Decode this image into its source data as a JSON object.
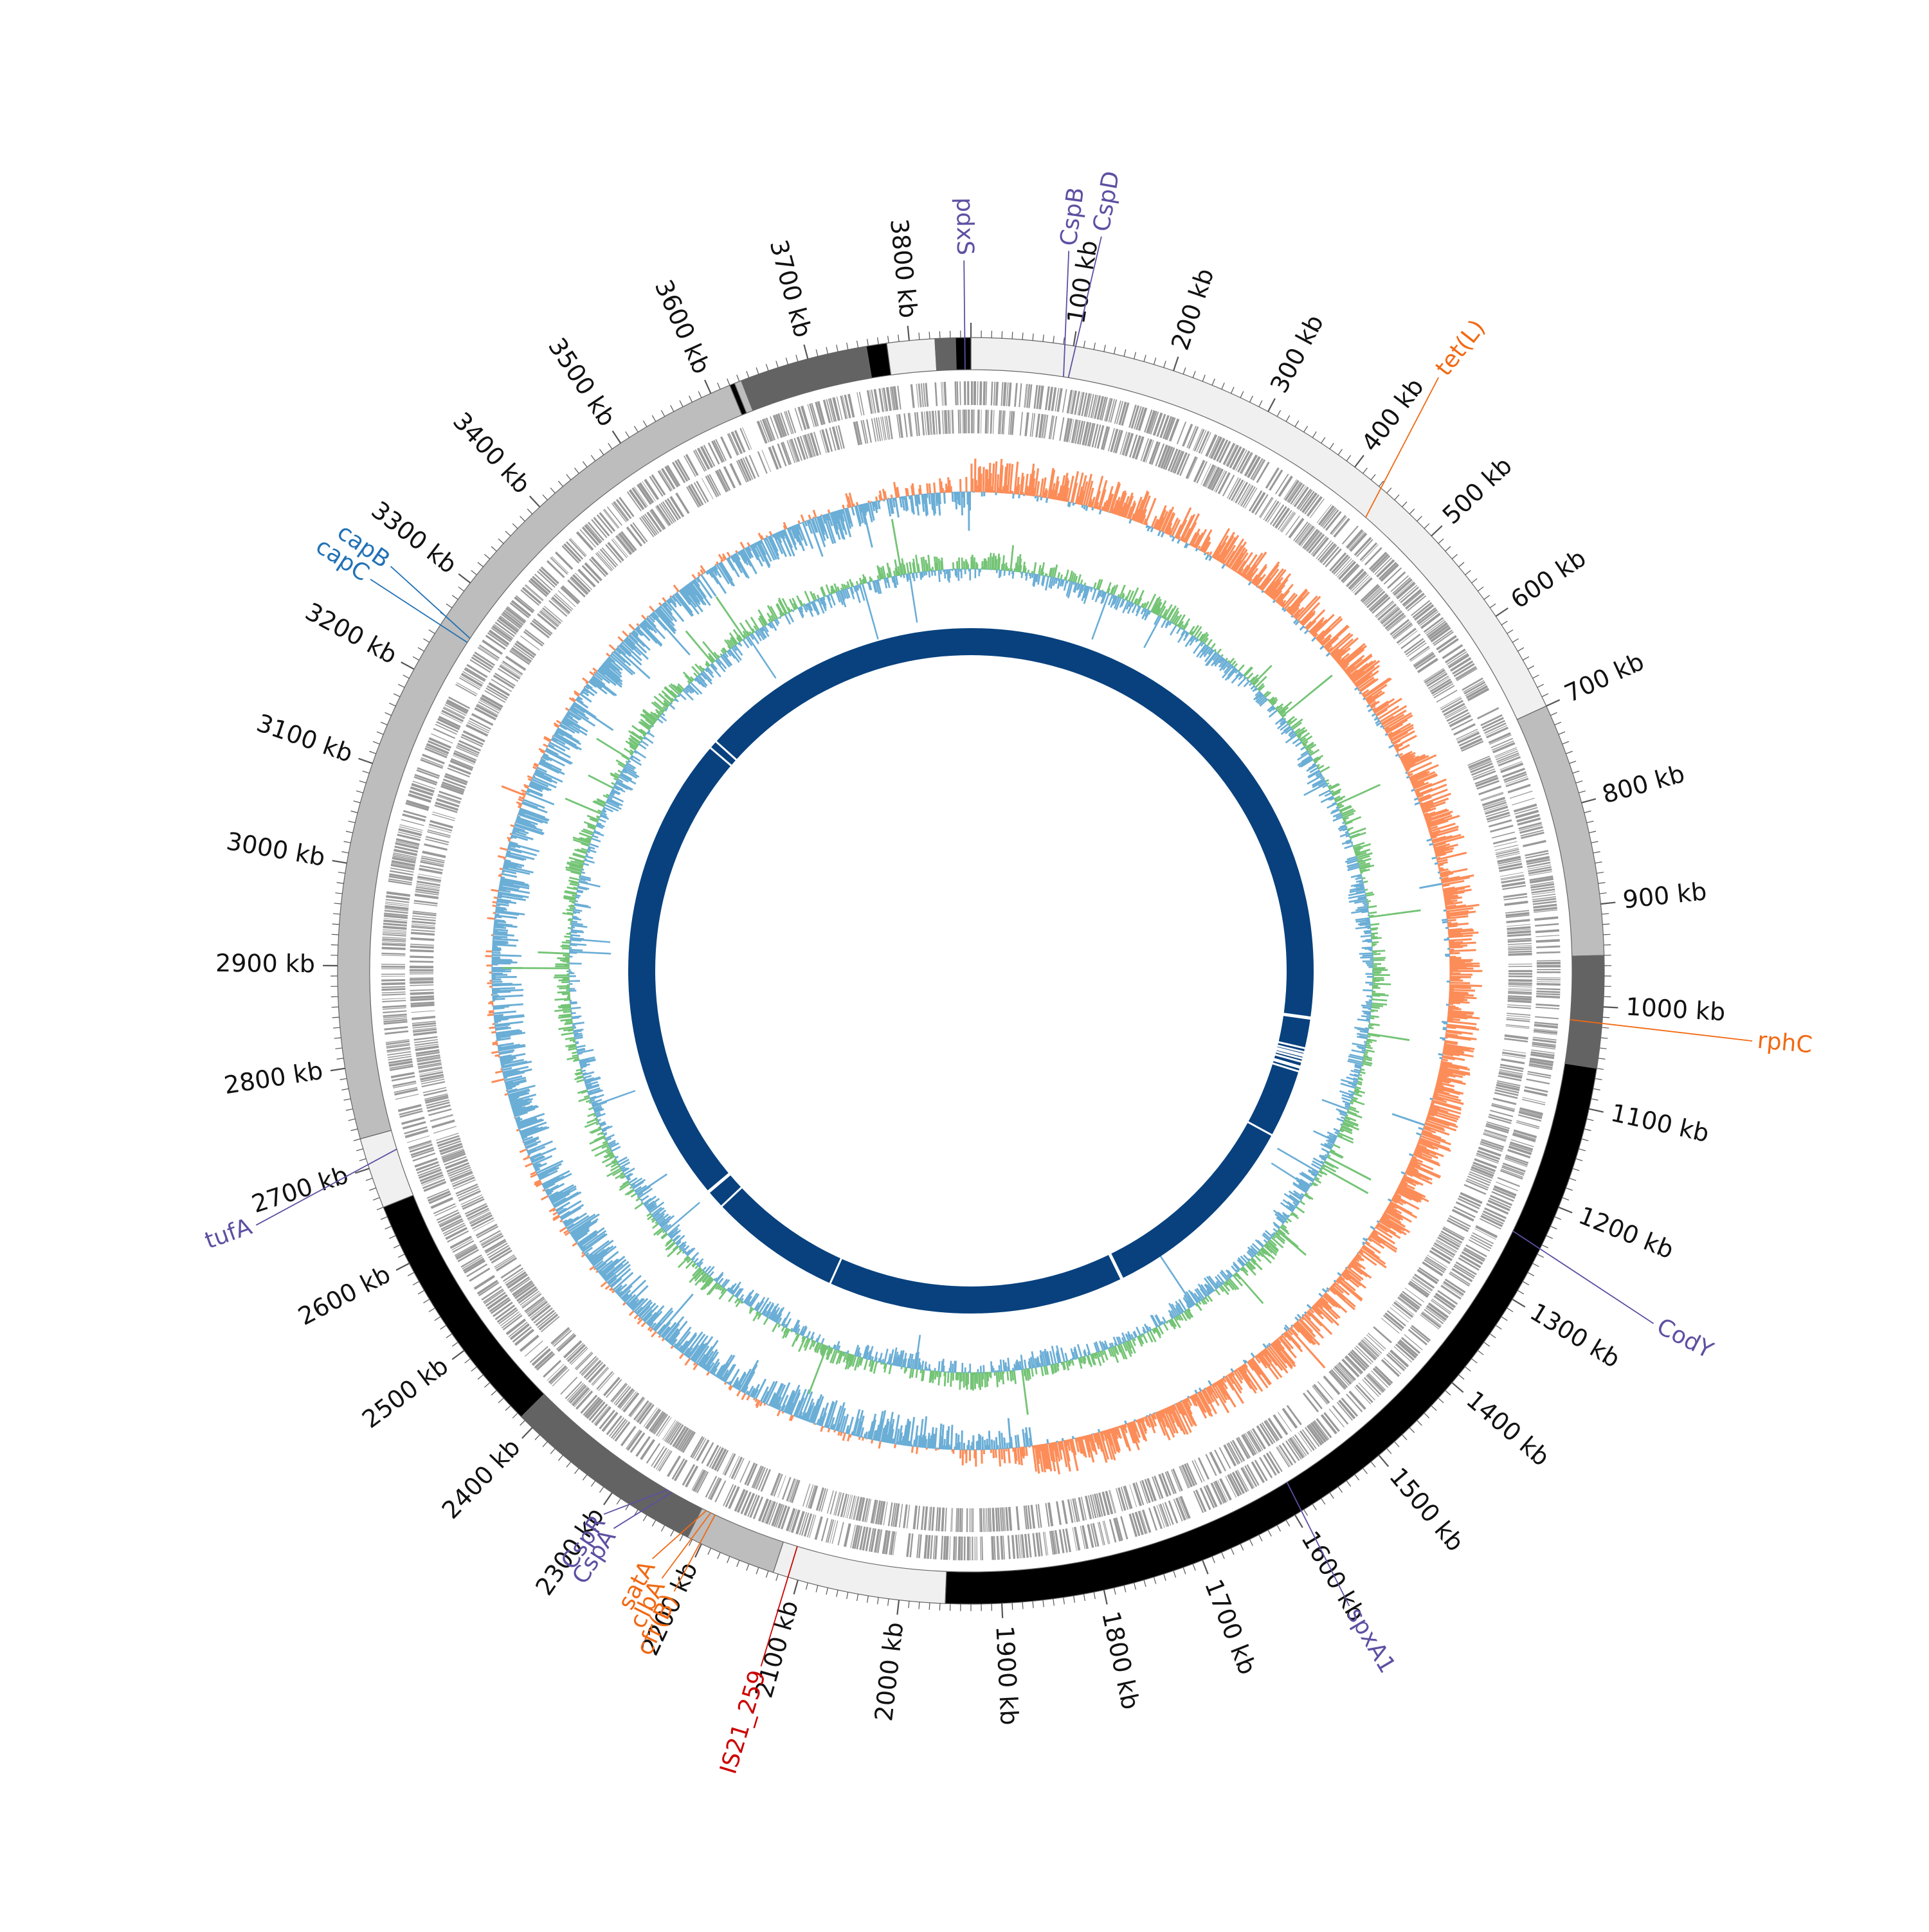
{
  "genome": {
    "total_kb": 3860,
    "scale_labels": [
      "100 kb",
      "200 kb",
      "300 kb",
      "400 kb",
      "500 kb",
      "600 kb",
      "700 kb",
      "800 kb",
      "900 kb",
      "1000 kb",
      "1100 kb",
      "1200 kb",
      "1300 kb",
      "1400 kb",
      "1500 kb",
      "1600 kb",
      "1700 kb",
      "1800 kb",
      "1900 kb",
      "2000 kb",
      "2100 kb",
      "2200 kb",
      "2300 kb",
      "2400 kb",
      "2500 kb",
      "2600 kb",
      "2700 kb",
      "2800 kb",
      "2900 kb",
      "3000 kb",
      "3100 kb",
      "3200 kb",
      "3300 kb",
      "3400 kb",
      "3500 kb",
      "3600 kb",
      "3700 kb",
      "3800 kb"
    ],
    "scale_values": [
      100,
      200,
      300,
      400,
      500,
      600,
      700,
      800,
      900,
      1000,
      1100,
      1200,
      1300,
      1400,
      1500,
      1600,
      1700,
      1800,
      1900,
      2000,
      2100,
      2200,
      2300,
      2400,
      2500,
      2600,
      2700,
      2800,
      2900,
      3000,
      3100,
      3200,
      3300,
      3400,
      3500,
      3600,
      3700,
      3800
    ]
  },
  "contigs": [
    {
      "start": 0,
      "end": 700,
      "color": "#f0f0f0"
    },
    {
      "start": 700,
      "end": 950,
      "color": "#bdbdbd"
    },
    {
      "start": 950,
      "end": 1060,
      "color": "#636363"
    },
    {
      "start": 1060,
      "end": 1955,
      "color": "#000000"
    },
    {
      "start": 1955,
      "end": 2125,
      "color": "#f0f0f0"
    },
    {
      "start": 2125,
      "end": 2215,
      "color": "#bdbdbd"
    },
    {
      "start": 2215,
      "end": 2415,
      "color": "#636363"
    },
    {
      "start": 2415,
      "end": 2660,
      "color": "#000000"
    },
    {
      "start": 2660,
      "end": 2730,
      "color": "#f0f0f0"
    },
    {
      "start": 2730,
      "end": 3620,
      "color": "#bdbdbd"
    },
    {
      "start": 3620,
      "end": 3625,
      "color": "#000000"
    },
    {
      "start": 3625,
      "end": 3632,
      "color": "#bdbdbd"
    },
    {
      "start": 3632,
      "end": 3758,
      "color": "#636363"
    },
    {
      "start": 3758,
      "end": 3778,
      "color": "#000000"
    },
    {
      "start": 3778,
      "end": 3825,
      "color": "#f0f0f0"
    },
    {
      "start": 3825,
      "end": 3845,
      "color": "#636363"
    },
    {
      "start": 3845,
      "end": 3860,
      "color": "#000000"
    }
  ],
  "annotations": [
    {
      "label": "pdxS",
      "pos": 3854,
      "color": "#5e4fa2"
    },
    {
      "label": "CspB",
      "pos": 95,
      "color": "#5e4fa2"
    },
    {
      "label": "CspD",
      "pos": 100,
      "color": "#5e4fa2"
    },
    {
      "label": "tet(L)",
      "pos": 440,
      "color": "#f16913"
    },
    {
      "label": "rphC",
      "pos": 1015,
      "color": "#f16913"
    },
    {
      "label": "CodY",
      "pos": 1240,
      "color": "#5e4fa2"
    },
    {
      "label": "spxA1",
      "pos": 1590,
      "color": "#5e4fa2"
    },
    {
      "label": "IS21_259",
      "pos": 2110,
      "color": "#cc0000"
    },
    {
      "label": "cfr(B)",
      "pos": 2200,
      "color": "#f16913"
    },
    {
      "label": "clbA",
      "pos": 2205,
      "color": "#f16913"
    },
    {
      "label": "satA",
      "pos": 2210,
      "color": "#f16913"
    },
    {
      "label": "CspA",
      "pos": 2250,
      "color": "#5e4fa2"
    },
    {
      "label": "CspR",
      "pos": 2255,
      "color": "#5e4fa2"
    },
    {
      "label": "tufA",
      "pos": 2710,
      "color": "#5e4fa2"
    },
    {
      "label": "capC",
      "pos": 3250,
      "color": "#2171b5"
    },
    {
      "label": "capB",
      "pos": 3255,
      "color": "#2171b5"
    }
  ],
  "tracks": {
    "cds_color": "#999999",
    "gc_skew_positive_color": "#fc8d59",
    "gc_skew_negative_color": "#6baed6",
    "gc_content_positive_color": "#74c476",
    "gc_content_negative_color": "#6baed6",
    "inner_ring_color": "#08417e",
    "inner_ring_gaps_kb": [
      1050,
      1105,
      1112,
      1118,
      1124,
      1130,
      1140,
      1148,
      1272,
      1650,
      2190,
      2430,
      2465,
      3330,
      3345
    ]
  }
}
